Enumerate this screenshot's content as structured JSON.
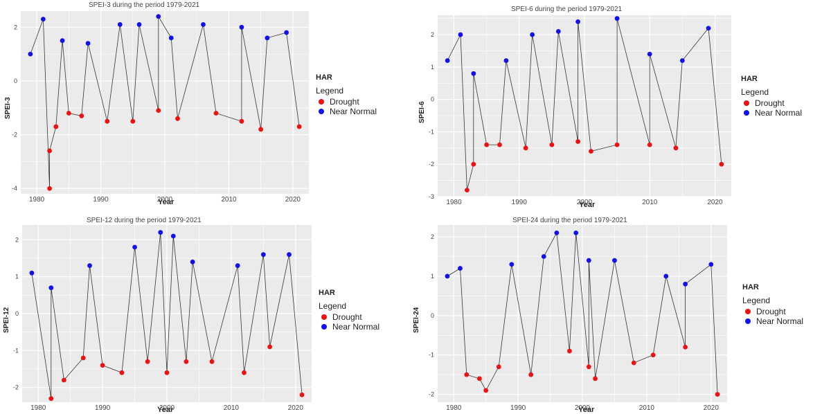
{
  "colors": {
    "drought": "#ee1111",
    "near_normal": "#1111ee",
    "panel_bg": "#ebebeb",
    "grid": "#ffffff",
    "line": "#333333"
  },
  "legend": {
    "title": "HAR",
    "subtitle": "Legend",
    "items": [
      "Drought",
      "Near Normal"
    ]
  },
  "chart_data": [
    {
      "type": "scatter",
      "title": "SPEI-3 during the period 1979-2021",
      "xlabel": "Year",
      "ylabel": "SPEI-3",
      "xlim": [
        1977.5,
        2022.5
      ],
      "ylim": [
        -4.2,
        2.6
      ],
      "xticks": [
        1980,
        1990,
        2000,
        2010,
        2020
      ],
      "yticks": [
        -4,
        -2,
        0,
        2
      ],
      "grid": true,
      "legend_position": "right",
      "series": [
        {
          "name": "Drought",
          "points": [
            [
              1982,
              -4.0
            ],
            [
              1982,
              -2.6
            ],
            [
              1983,
              -1.7
            ],
            [
              1985,
              -1.2
            ],
            [
              1987,
              -1.3
            ],
            [
              1991,
              -1.5
            ],
            [
              1995,
              -1.5
            ],
            [
              1999,
              -1.1
            ],
            [
              2002,
              -1.4
            ],
            [
              2008,
              -1.2
            ],
            [
              2012,
              -1.5
            ],
            [
              2015,
              -1.8
            ],
            [
              2021,
              -1.7
            ]
          ]
        },
        {
          "name": "Near Normal",
          "points": [
            [
              1979,
              1.0
            ],
            [
              1981,
              2.3
            ],
            [
              1984,
              1.5
            ],
            [
              1988,
              1.4
            ],
            [
              1993,
              2.1
            ],
            [
              1996,
              2.1
            ],
            [
              1999,
              2.4
            ],
            [
              2001,
              1.6
            ],
            [
              2006,
              2.1
            ],
            [
              2012,
              2.0
            ],
            [
              2016,
              1.6
            ],
            [
              2019,
              1.8
            ]
          ]
        }
      ]
    },
    {
      "type": "scatter",
      "title": "SPEI-6 during the period 1979-2021",
      "xlabel": "Year",
      "ylabel": "SPEI-6",
      "xlim": [
        1977.5,
        2022.5
      ],
      "ylim": [
        -3.0,
        2.6
      ],
      "xticks": [
        1980,
        1990,
        2000,
        2010,
        2020
      ],
      "yticks": [
        -3,
        -2,
        -1,
        0,
        1,
        2
      ],
      "grid": true,
      "legend_position": "right",
      "series": [
        {
          "name": "Drought",
          "points": [
            [
              1982,
              -2.8
            ],
            [
              1983,
              -2.0
            ],
            [
              1985,
              -1.4
            ],
            [
              1987,
              -1.4
            ],
            [
              1991,
              -1.5
            ],
            [
              1995,
              -1.4
            ],
            [
              1999,
              -1.3
            ],
            [
              2001,
              -1.6
            ],
            [
              2005,
              -1.4
            ],
            [
              2010,
              -1.4
            ],
            [
              2014,
              -1.5
            ],
            [
              2021,
              -2.0
            ]
          ]
        },
        {
          "name": "Near Normal",
          "points": [
            [
              1979,
              1.2
            ],
            [
              1981,
              2.0
            ],
            [
              1983,
              0.8
            ],
            [
              1988,
              1.2
            ],
            [
              1992,
              2.0
            ],
            [
              1996,
              2.1
            ],
            [
              1999,
              2.4
            ],
            [
              2005,
              2.5
            ],
            [
              2010,
              1.4
            ],
            [
              2015,
              1.2
            ],
            [
              2019,
              2.2
            ]
          ]
        }
      ]
    },
    {
      "type": "scatter",
      "title": "SPEI-12 during the period 1979-2021",
      "xlabel": "Year",
      "ylabel": "SPEI-12",
      "xlim": [
        1977.5,
        2022.5
      ],
      "ylim": [
        -2.4,
        2.4
      ],
      "xticks": [
        1980,
        1990,
        2000,
        2010,
        2020
      ],
      "yticks": [
        -2,
        -1,
        0,
        1,
        2
      ],
      "grid": true,
      "legend_position": "right",
      "series": [
        {
          "name": "Drought",
          "points": [
            [
              1982,
              -2.3
            ],
            [
              1984,
              -1.8
            ],
            [
              1987,
              -1.2
            ],
            [
              1990,
              -1.4
            ],
            [
              1993,
              -1.6
            ],
            [
              1997,
              -1.3
            ],
            [
              2000,
              -1.6
            ],
            [
              2003,
              -1.3
            ],
            [
              2007,
              -1.3
            ],
            [
              2012,
              -1.6
            ],
            [
              2016,
              -0.9
            ],
            [
              2021,
              -2.2
            ]
          ]
        },
        {
          "name": "Near Normal",
          "points": [
            [
              1979,
              1.1
            ],
            [
              1982,
              0.7
            ],
            [
              1988,
              1.3
            ],
            [
              1995,
              1.8
            ],
            [
              1999,
              2.2
            ],
            [
              2001,
              2.1
            ],
            [
              2004,
              1.4
            ],
            [
              2011,
              1.3
            ],
            [
              2015,
              1.6
            ],
            [
              2019,
              1.6
            ]
          ]
        }
      ]
    },
    {
      "type": "scatter",
      "title": "SPEI-24 during the period 1979-2021",
      "xlabel": "Year",
      "ylabel": "SPEI-24",
      "xlim": [
        1977.5,
        2022.5
      ],
      "ylim": [
        -2.2,
        2.3
      ],
      "xticks": [
        1980,
        1990,
        2000,
        2010,
        2020
      ],
      "yticks": [
        -2,
        -1,
        0,
        1,
        2
      ],
      "grid": true,
      "legend_position": "right",
      "series": [
        {
          "name": "Drought",
          "points": [
            [
              1982,
              -1.5
            ],
            [
              1984,
              -1.6
            ],
            [
              1985,
              -1.9
            ],
            [
              1987,
              -1.3
            ],
            [
              1992,
              -1.5
            ],
            [
              1998,
              -0.9
            ],
            [
              2001,
              -1.3
            ],
            [
              2002,
              -1.6
            ],
            [
              2008,
              -1.2
            ],
            [
              2011,
              -1.0
            ],
            [
              2016,
              -0.8
            ],
            [
              2021,
              -2.0
            ]
          ]
        },
        {
          "name": "Near Normal",
          "points": [
            [
              1979,
              1.0
            ],
            [
              1981,
              1.2
            ],
            [
              1989,
              1.3
            ],
            [
              1994,
              1.5
            ],
            [
              1996,
              2.1
            ],
            [
              1999,
              2.1
            ],
            [
              2001,
              1.4
            ],
            [
              2005,
              1.4
            ],
            [
              2013,
              1.0
            ],
            [
              2016,
              0.8
            ],
            [
              2020,
              1.3
            ]
          ]
        }
      ]
    }
  ]
}
